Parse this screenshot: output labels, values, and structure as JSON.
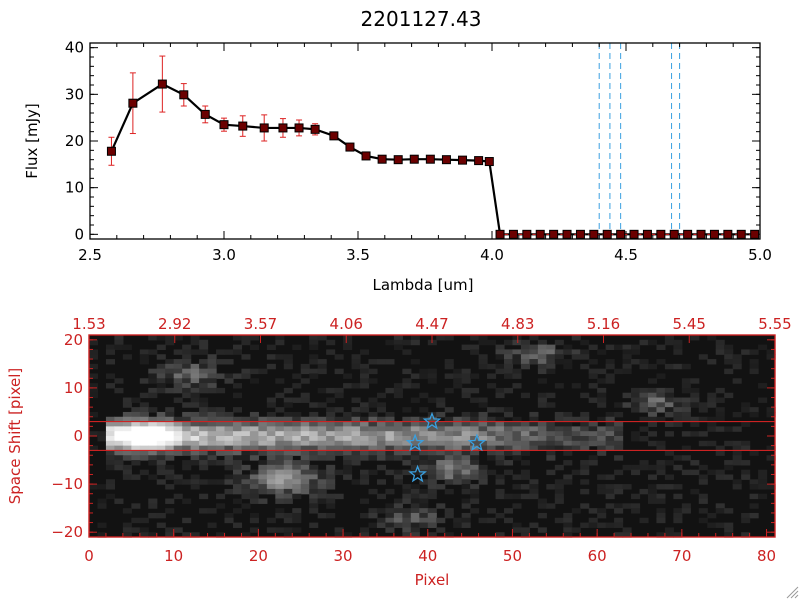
{
  "colors": {
    "axis_black": "#000000",
    "axis_red": "#cc2222",
    "marker": "#6b0000",
    "errorbar": "#dd2222",
    "vline": "#3aa0e0",
    "star": "#3aa0e0",
    "slit_line": "#cc2222"
  },
  "chart_data": [
    {
      "type": "line",
      "title": "2201127.43",
      "xlabel": "Lambda [um]",
      "ylabel": "Flux [mJy]",
      "xlim": [
        2.5,
        5.0
      ],
      "ylim": [
        -1,
        41
      ],
      "xticks": [
        2.5,
        3.0,
        3.5,
        4.0,
        4.5,
        5.0
      ],
      "xtick_labels": [
        "2.5",
        "3.0",
        "3.5",
        "4.0",
        "4.5",
        "5.0"
      ],
      "yticks": [
        0,
        10,
        20,
        30,
        40
      ],
      "ytick_labels": [
        "0",
        "10",
        "20",
        "30",
        "40"
      ],
      "grid": false,
      "series": [
        {
          "x": [
            2.58,
            2.66,
            2.77,
            2.85,
            2.93,
            3.0,
            3.07,
            3.15,
            3.22,
            3.28,
            3.34,
            3.41,
            3.47,
            3.53,
            3.59,
            3.65,
            3.71,
            3.77,
            3.83,
            3.89,
            3.95,
            3.99,
            4.03,
            4.08,
            4.13,
            4.18,
            4.23,
            4.28,
            4.33,
            4.38,
            4.43,
            4.48,
            4.53,
            4.58,
            4.63,
            4.68,
            4.73,
            4.78,
            4.83,
            4.88,
            4.93,
            4.98
          ],
          "y": [
            17.8,
            28.1,
            32.2,
            29.9,
            25.7,
            23.5,
            23.2,
            22.8,
            22.8,
            22.8,
            22.5,
            21.1,
            18.7,
            16.8,
            16.1,
            16.0,
            16.1,
            16.1,
            16.0,
            15.9,
            15.8,
            15.6,
            0,
            0,
            0,
            0,
            0,
            0,
            0,
            0,
            0,
            0,
            0,
            0,
            0,
            0,
            0,
            0,
            0,
            0,
            0,
            0
          ],
          "yerr": [
            3.0,
            6.5,
            6.0,
            2.4,
            1.8,
            1.4,
            2.2,
            2.8,
            2.0,
            1.7,
            1.2,
            0.7,
            0.6,
            0.5,
            0.4,
            0.4,
            0.4,
            0.4,
            0.4,
            0.4,
            0.4,
            0.4,
            0,
            0,
            0,
            0,
            0,
            0,
            0,
            0,
            0,
            0,
            0,
            0,
            0,
            0,
            0,
            0,
            0,
            0,
            0,
            0
          ]
        }
      ],
      "vlines": [
        4.4,
        4.44,
        4.48,
        4.67,
        4.7
      ]
    },
    {
      "type": "heatmap",
      "xlabel": "Pixel",
      "ylabel": "Space Shift [pixel]",
      "xlim": [
        0,
        81
      ],
      "ylim": [
        -21,
        21
      ],
      "xticks": [
        0,
        10,
        20,
        30,
        40,
        50,
        60,
        70,
        80
      ],
      "xtick_labels": [
        "0",
        "10",
        "20",
        "30",
        "40",
        "50",
        "60",
        "70",
        "80"
      ],
      "yticks": [
        -20,
        -10,
        0,
        10,
        20
      ],
      "ytick_labels": [
        "−20",
        "−10",
        "0",
        "10",
        "20"
      ],
      "top_axis_labels": [
        "1.53",
        "2.92",
        "3.57",
        "4.06",
        "4.47",
        "4.83",
        "5.16",
        "5.45",
        "5.55"
      ],
      "slit_lines": [
        3,
        -3
      ],
      "stars": [
        {
          "x": 40.5,
          "y": 3.0
        },
        {
          "x": 38.5,
          "y": -1.5
        },
        {
          "x": 45.8,
          "y": -1.5
        },
        {
          "x": 38.8,
          "y": -8.0
        }
      ]
    }
  ]
}
